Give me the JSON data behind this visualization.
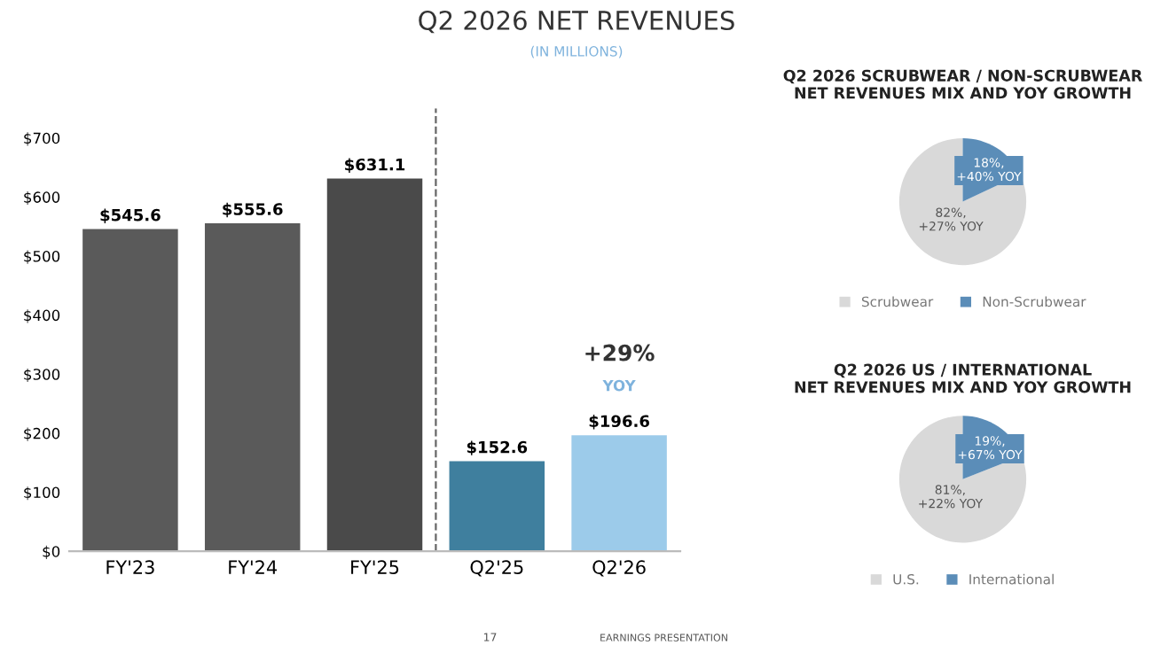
{
  "chart_data": [
    {
      "type": "bar",
      "title": "Q2 2026 NET REVENUES",
      "subtitle": "(IN MILLIONS)",
      "categories": [
        "FY'23",
        "FY'24",
        "FY'25",
        "Q2'25",
        "Q2'26"
      ],
      "values": [
        545.6,
        555.6,
        631.1,
        152.6,
        196.6
      ],
      "colors": [
        "#5a5a5a",
        "#5a5a5a",
        "#4a4a4a",
        "#3f7f9e",
        "#9ccbea"
      ],
      "value_labels": [
        "$545.6",
        "$555.6",
        "$631.1",
        "$152.6",
        "$196.6"
      ],
      "ylim": [
        0,
        750
      ],
      "yticks": [
        {
          "value": 0,
          "label": "$0"
        },
        {
          "value": 100,
          "label": "$100"
        },
        {
          "value": 200,
          "label": "$200"
        },
        {
          "value": 300,
          "label": "$300"
        },
        {
          "value": 400,
          "label": "$400"
        },
        {
          "value": 500,
          "label": "$500"
        },
        {
          "value": 600,
          "label": "$600"
        },
        {
          "value": 700,
          "label": "$700"
        }
      ],
      "annotations": [
        "+29%",
        "YOY",
        "17",
        "EARNINGS PRESENTATION"
      ],
      "grid": false
    },
    {
      "type": "pie",
      "title": "Q2 2026 SCRUBWEAR / NON-SCRUBWEAR\nNET REVENUES MIX AND YOY GROWTH",
      "categories": [
        "Scrubwear",
        "Non-Scrubwear"
      ],
      "values": [
        82,
        18
      ],
      "colors": [
        "#d9d9d9",
        "#5b8db8"
      ],
      "value_labels": [
        "82%,\n+27% YOY",
        "18%,\n+40% YOY"
      ],
      "legend": "bottom"
    },
    {
      "type": "pie",
      "title": "Q2 2026 US / INTERNATIONAL\nNET REVENUES MIX AND YOY GROWTH",
      "categories": [
        "U.S.",
        "International"
      ],
      "values": [
        81,
        19
      ],
      "colors": [
        "#d9d9d9",
        "#5b8db8"
      ],
      "value_labels": [
        "81%,\n+22% YOY",
        "19%,\n+67% YOY"
      ],
      "legend": "bottom"
    }
  ]
}
